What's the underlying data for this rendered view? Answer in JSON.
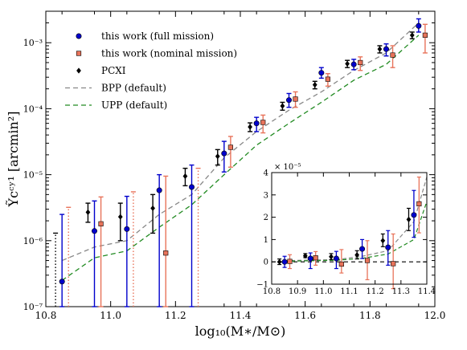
{
  "chart_data": [
    {
      "type": "scatter",
      "title": "",
      "xlabel": "log₁₀(M∗/M⊙)",
      "ylabel": "Ỹcᶜʸ¹ [arcmin²]",
      "xlim": [
        10.8,
        12.0
      ],
      "ylim": [
        1e-07,
        0.003
      ],
      "yscale": "log",
      "grid": false,
      "legend_position": "top-left",
      "xticks": [
        "10.8",
        "11.0",
        "11.2",
        "11.4",
        "11.6",
        "11.8",
        "12.0"
      ],
      "yticks": [
        "10⁻⁷",
        "10⁻⁶",
        "10⁻⁵",
        "10⁻⁴",
        "10⁻³"
      ],
      "series": [
        {
          "name": "this work (full mission)",
          "marker": "circle",
          "color": "#0000cc",
          "x": [
            10.85,
            10.95,
            11.05,
            11.15,
            11.25,
            11.35,
            11.45,
            11.55,
            11.65,
            11.75,
            11.85,
            11.95
          ],
          "y": [
            2.4e-07,
            1.4e-06,
            1.5e-06,
            5.8e-06,
            6.5e-06,
            2.1e-05,
            6e-05,
            0.000135,
            0.00035,
            0.00047,
            0.0008,
            0.0018
          ],
          "ylow": [
            1e-07,
            1e-07,
            1e-07,
            1e-07,
            1e-07,
            1.1e-05,
            4.5e-05,
            0.000105,
            0.00029,
            0.00039,
            0.00063,
            0.00145
          ],
          "yhigh": [
            2.5e-06,
            4e-06,
            4.7e-06,
            1e-05,
            1.4e-05,
            3.2e-05,
            7.4e-05,
            0.00017,
            0.00042,
            0.00056,
            0.00096,
            0.0023
          ]
        },
        {
          "name": "this work (nominal mission)",
          "marker": "square",
          "color": "#e8735a",
          "x": [
            10.87,
            10.97,
            11.07,
            11.17,
            11.27,
            11.37,
            11.47,
            11.57,
            11.67,
            11.77,
            11.87,
            11.97
          ],
          "y": [
            1e-07,
            1.8e-06,
            1e-07,
            6.5e-07,
            1e-07,
            2.6e-05,
            6.2e-05,
            0.00014,
            0.00028,
            0.0005,
            0.00065,
            0.0013
          ],
          "ylow": [
            1e-07,
            1e-07,
            1e-07,
            1e-07,
            1e-07,
            1.3e-05,
            4.3e-05,
            0.000105,
            0.00022,
            0.00038,
            0.00042,
            0.0007
          ],
          "yhigh": [
            3.2e-06,
            4.6e-06,
            5.5e-06,
            9.5e-06,
            1.25e-05,
            3.8e-05,
            8e-05,
            0.00018,
            0.00034,
            0.00061,
            0.0009,
            0.0019
          ]
        },
        {
          "name": "PCXI",
          "marker": "diamond",
          "color": "#000000",
          "x": [
            10.83,
            10.93,
            11.03,
            11.13,
            11.23,
            11.33,
            11.43,
            11.53,
            11.63,
            11.73,
            11.83,
            11.93
          ],
          "y": [
            1e-07,
            2.7e-06,
            2.3e-06,
            3.1e-06,
            9.5e-06,
            1.9e-05,
            5.3e-05,
            0.00011,
            0.00023,
            0.00048,
            0.0008,
            0.0013
          ],
          "ylow": [
            1e-07,
            1.9e-06,
            1e-06,
            1.3e-06,
            6.8e-06,
            1.4e-05,
            4.5e-05,
            9.5e-05,
            0.0002,
            0.00042,
            0.0007,
            0.00115
          ],
          "yhigh": [
            1.3e-06,
            3.7e-06,
            3.7e-06,
            5e-06,
            1.25e-05,
            2.4e-05,
            6.1e-05,
            0.000125,
            0.00026,
            0.00054,
            0.0009,
            0.00145
          ]
        },
        {
          "name": "BPP (default)",
          "marker": "line",
          "style": "dashed",
          "color": "#888888",
          "x": [
            10.85,
            10.95,
            11.05,
            11.15,
            11.25,
            11.35,
            11.45,
            11.55,
            11.65,
            11.75,
            11.85,
            11.95
          ],
          "y": [
            5e-07,
            8e-07,
            1e-06,
            2.5e-06,
            5e-06,
            1.8e-05,
            4.5e-05,
            9.5e-05,
            0.00018,
            0.00038,
            0.0007,
            0.002
          ]
        },
        {
          "name": "UPP (default)",
          "marker": "line",
          "style": "dashed",
          "color": "#228b22",
          "x": [
            10.85,
            10.95,
            11.05,
            11.15,
            11.25,
            11.35,
            11.45,
            11.55,
            11.65,
            11.75,
            11.85,
            11.95
          ],
          "y": [
            2.5e-07,
            5.5e-07,
            7e-07,
            1.6e-06,
            3.5e-06,
            1e-05,
            2.8e-05,
            6e-05,
            0.000125,
            0.00027,
            0.00047,
            0.0013
          ]
        }
      ]
    },
    {
      "type": "scatter",
      "title": "",
      "inset": true,
      "xlim": [
        10.8,
        11.4
      ],
      "ylim": [
        -1,
        4
      ],
      "yscale": "linear",
      "y_multiplier": "× 10⁻⁵",
      "xticks": [
        "10.8",
        "10.9",
        "11.0",
        "11.1",
        "11.2",
        "11.3",
        "11.4"
      ],
      "yticks": [
        "−1",
        "0",
        "1",
        "2",
        "3",
        "4"
      ],
      "zero_line": true,
      "series": [
        {
          "name": "this work (full mission)",
          "marker": "circle",
          "color": "#0000cc",
          "x": [
            10.85,
            10.95,
            11.05,
            11.15,
            11.25,
            11.35
          ],
          "y": [
            0.0,
            0.15,
            0.15,
            0.58,
            0.65,
            2.1
          ],
          "ylow": [
            -0.25,
            -0.3,
            -0.3,
            0.15,
            -0.15,
            1.1
          ],
          "yhigh": [
            0.25,
            0.4,
            0.47,
            1.0,
            1.4,
            3.2
          ]
        },
        {
          "name": "this work (nominal mission)",
          "marker": "square",
          "color": "#e8735a",
          "x": [
            10.87,
            10.97,
            11.07,
            11.17,
            11.27,
            11.37
          ],
          "y": [
            0.02,
            0.18,
            -0.1,
            0.06,
            -0.08,
            2.6
          ],
          "ylow": [
            -0.3,
            -0.15,
            -0.5,
            -0.8,
            -1.2,
            1.3
          ],
          "yhigh": [
            0.32,
            0.46,
            0.55,
            0.95,
            1.25,
            3.8
          ]
        },
        {
          "name": "PCXI",
          "marker": "diamond",
          "color": "#000000",
          "x": [
            10.83,
            10.93,
            11.03,
            11.13,
            11.23,
            11.33
          ],
          "y": [
            0.0,
            0.27,
            0.23,
            0.31,
            0.95,
            1.9
          ],
          "ylow": [
            -0.12,
            0.19,
            0.1,
            0.13,
            0.68,
            1.4
          ],
          "yhigh": [
            0.13,
            0.37,
            0.37,
            0.5,
            1.25,
            2.4
          ]
        },
        {
          "name": "BPP (default)",
          "marker": "line",
          "style": "dashed",
          "color": "#888888",
          "x": [
            10.85,
            10.95,
            11.05,
            11.15,
            11.25,
            11.35,
            11.4
          ],
          "y": [
            0.05,
            0.08,
            0.1,
            0.25,
            0.5,
            1.8,
            3.8
          ]
        },
        {
          "name": "UPP (default)",
          "marker": "line",
          "style": "dashed",
          "color": "#228b22",
          "x": [
            10.85,
            10.95,
            11.05,
            11.15,
            11.25,
            11.35,
            11.4
          ],
          "y": [
            0.03,
            0.05,
            0.07,
            0.16,
            0.35,
            1.0,
            2.7
          ]
        }
      ]
    }
  ]
}
